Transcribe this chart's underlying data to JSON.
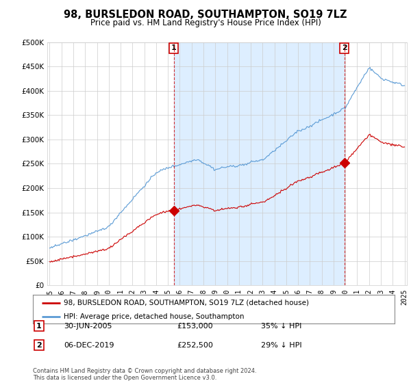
{
  "title": "98, BURSLEDON ROAD, SOUTHAMPTON, SO19 7LZ",
  "subtitle": "Price paid vs. HM Land Registry's House Price Index (HPI)",
  "legend_line1": "98, BURSLEDON ROAD, SOUTHAMPTON, SO19 7LZ (detached house)",
  "legend_line2": "HPI: Average price, detached house, Southampton",
  "footnote": "Contains HM Land Registry data © Crown copyright and database right 2024.\nThis data is licensed under the Open Government Licence v3.0.",
  "marker1_date": "30-JUN-2005",
  "marker1_price": 153000,
  "marker1_label": "35% ↓ HPI",
  "marker1_x": 2005.5,
  "marker2_date": "06-DEC-2019",
  "marker2_price": 252500,
  "marker2_label": "29% ↓ HPI",
  "marker2_x": 2019.92,
  "hpi_color": "#5b9bd5",
  "price_color": "#cc0000",
  "shade_color": "#ddeeff",
  "ylim": [
    0,
    500000
  ],
  "xlim": [
    1994.8,
    2025.2
  ],
  "background_color": "#ffffff",
  "plot_bg_color": "#ffffff"
}
